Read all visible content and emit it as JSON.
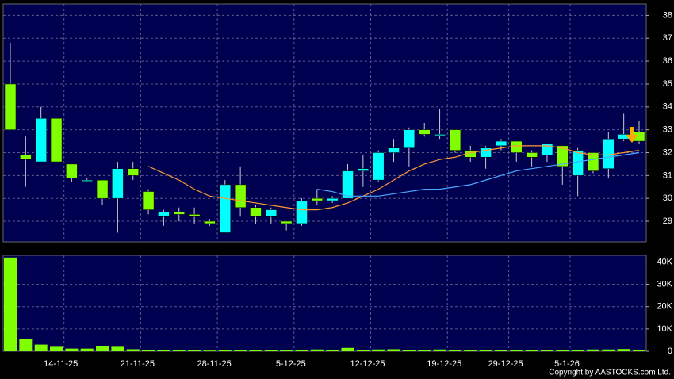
{
  "chart_data": [
    {
      "type": "candlestick",
      "categories": [
        null,
        null,
        null,
        "14-11-25",
        null,
        null,
        null,
        null,
        "21-11-25",
        null,
        null,
        null,
        null,
        "28-11-25",
        null,
        null,
        null,
        null,
        "5-12-25",
        null,
        null,
        null,
        null,
        "12-12-25",
        null,
        null,
        null,
        null,
        "19-12-25",
        null,
        null,
        null,
        "29-12-25",
        null,
        null,
        null,
        "5-1-26",
        null,
        null,
        null,
        null,
        null
      ],
      "open": [
        35,
        31.9,
        31.6,
        33.5,
        31.5,
        30.8,
        30.8,
        30.0,
        31.3,
        30.3,
        29.2,
        29.4,
        29.3,
        29.0,
        28.5,
        30.6,
        29.6,
        29.2,
        29.0,
        28.9,
        30.0,
        29.9,
        30.0,
        31.2,
        30.8,
        32.0,
        32.2,
        33.0,
        32.8,
        33.0,
        32.1,
        31.8,
        32.3,
        32.5,
        32.0,
        31.9,
        32.3,
        31.0,
        32.0,
        31.3,
        32.6,
        32.9
      ],
      "high": [
        36.8,
        32.7,
        34.0,
        33.5,
        31.5,
        30.9,
        30.8,
        31.6,
        31.6,
        30.4,
        29.5,
        29.6,
        29.6,
        29.1,
        30.8,
        31.4,
        29.7,
        29.6,
        29.0,
        30.0,
        30.4,
        30.1,
        31.5,
        31.9,
        32.1,
        32.6,
        33.1,
        33.3,
        33.9,
        33.0,
        32.3,
        32.3,
        32.6,
        32.5,
        32.1,
        32.4,
        32.3,
        32.2,
        32.0,
        32.9,
        33.7,
        33.4
      ],
      "low": [
        33.0,
        30.5,
        31.6,
        31.6,
        30.7,
        30.7,
        29.7,
        28.5,
        30.8,
        29.3,
        28.8,
        29.0,
        28.9,
        28.8,
        28.5,
        29.2,
        28.9,
        28.9,
        28.6,
        28.8,
        29.7,
        29.8,
        30.0,
        30.5,
        30.7,
        31.6,
        31.4,
        32.7,
        32.6,
        32.0,
        31.6,
        31.3,
        32.1,
        31.6,
        31.4,
        31.6,
        30.6,
        30.1,
        31.1,
        30.9,
        32.5,
        32.4
      ],
      "close": [
        33,
        31.7,
        33.5,
        31.6,
        30.9,
        30.8,
        30.0,
        31.3,
        31.0,
        29.5,
        29.4,
        29.3,
        29.2,
        28.9,
        30.6,
        29.6,
        29.2,
        29.5,
        28.9,
        29.9,
        29.9,
        30.0,
        31.2,
        31.3,
        32.0,
        32.2,
        33.0,
        32.8,
        32.8,
        32.1,
        31.8,
        32.2,
        32.5,
        32.0,
        31.8,
        32.4,
        31.4,
        32.1,
        31.2,
        32.6,
        32.8,
        32.5
      ],
      "up_color": "#00ffff",
      "down_color": "#80ff00",
      "series": [
        {
          "color": "#ff9933",
          "values": [
            null,
            null,
            null,
            null,
            null,
            null,
            null,
            null,
            null,
            31.4,
            31.1,
            30.8,
            30.4,
            30.1,
            30.0,
            29.9,
            29.8,
            29.7,
            29.6,
            29.5,
            29.5,
            29.6,
            29.8,
            30.1,
            30.4,
            30.8,
            31.2,
            31.5,
            31.7,
            31.8,
            32.0,
            32.1,
            32.2,
            32.3,
            32.3,
            32.3,
            32.2,
            32.0,
            31.9,
            31.9,
            32.0,
            32.1
          ]
        },
        {
          "color": "#4aa8ff",
          "values": [
            null,
            null,
            null,
            null,
            null,
            null,
            null,
            null,
            null,
            null,
            null,
            null,
            null,
            null,
            null,
            null,
            null,
            null,
            null,
            null,
            30.4,
            30.3,
            30.1,
            30.1,
            30.1,
            30.2,
            30.3,
            30.4,
            30.4,
            30.5,
            30.6,
            30.8,
            31.0,
            31.2,
            31.3,
            31.4,
            31.5,
            31.6,
            31.7,
            31.8,
            31.9,
            32.0
          ]
        }
      ],
      "ylim": [
        28.1,
        38.5
      ],
      "yticks": [
        29,
        30,
        31,
        32,
        33,
        34,
        35,
        36,
        37,
        38
      ],
      "grid": true
    },
    {
      "type": "bar",
      "values": [
        42000,
        5500,
        3000,
        2000,
        1200,
        1200,
        2200,
        2000,
        900,
        700,
        600,
        400,
        400,
        300,
        500,
        500,
        400,
        400,
        500,
        500,
        800,
        400,
        1500,
        600,
        800,
        900,
        700,
        700,
        800,
        500,
        600,
        500,
        400,
        500,
        400,
        600,
        600,
        600,
        800,
        800,
        1000,
        500
      ],
      "color": "#80ff00",
      "ylim": [
        0,
        43000
      ],
      "yticks": [
        0,
        {
          "value": 10000,
          "label": "10K"
        },
        {
          "value": 20000,
          "label": "20K"
        },
        {
          "value": 30000,
          "label": "30K"
        },
        {
          "value": 40000,
          "label": "40K"
        }
      ],
      "grid": true
    }
  ],
  "copyright": "Copyright by AASTOCKS.com Ltd."
}
